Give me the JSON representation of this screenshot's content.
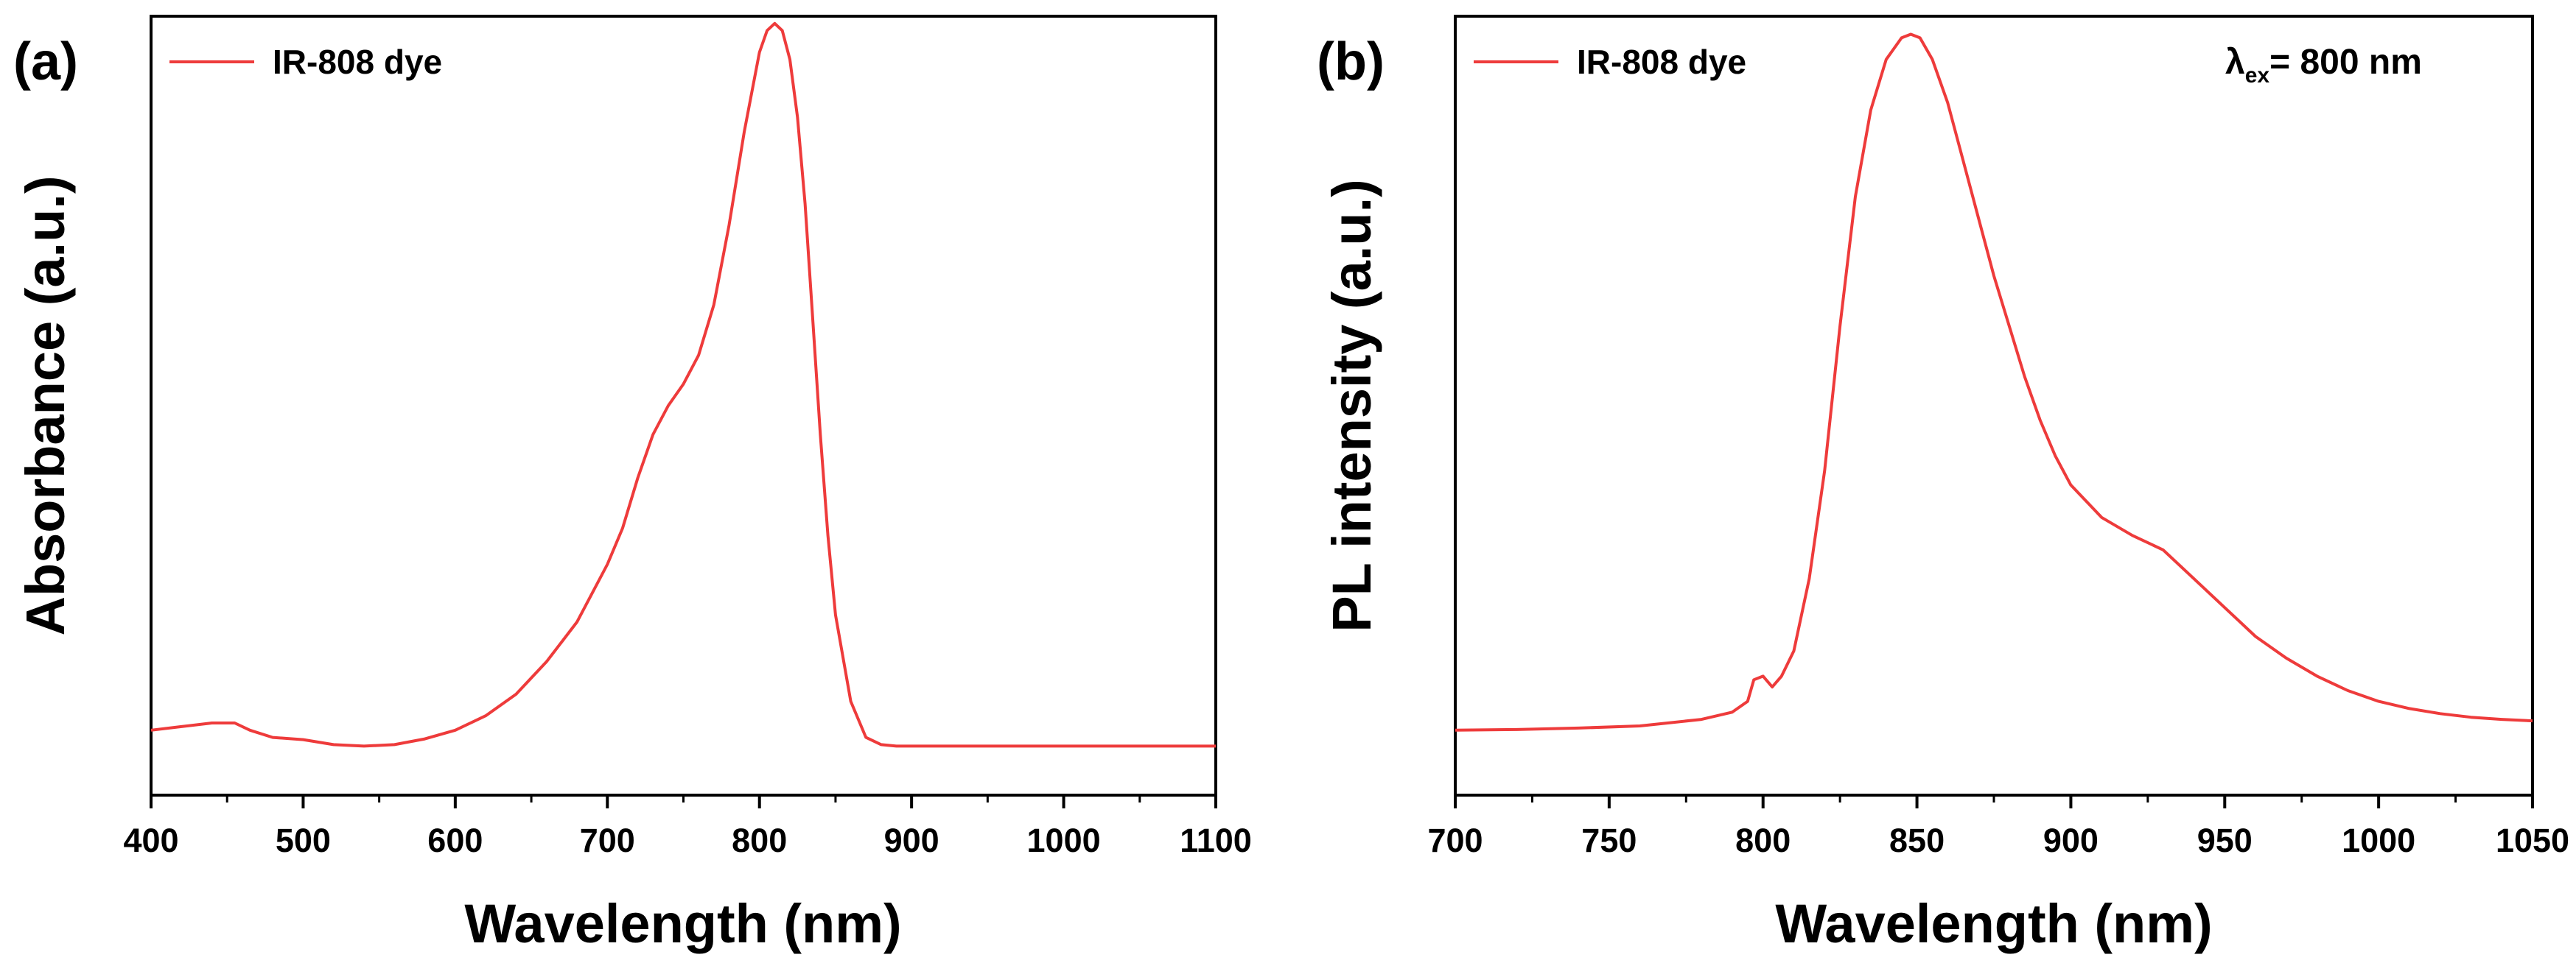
{
  "chart_data": [
    {
      "type": "line",
      "panel_label": "(a)",
      "xlabel": "Wavelength  (nm)",
      "ylabel": "Absorbance  (a.u.)",
      "xlim": [
        400,
        1100
      ],
      "ylim": [
        0,
        1.08
      ],
      "x_ticks": [
        400,
        500,
        600,
        700,
        800,
        900,
        1000,
        1100
      ],
      "y_ticks_shown": false,
      "legend": "top-left",
      "color": "#ee3b3b",
      "series": [
        {
          "name": "IR-808 dye",
          "x": [
            400,
            420,
            440,
            455,
            465,
            480,
            500,
            520,
            540,
            560,
            580,
            600,
            620,
            640,
            660,
            680,
            700,
            710,
            720,
            730,
            740,
            750,
            760,
            770,
            780,
            790,
            800,
            805,
            810,
            815,
            820,
            825,
            830,
            835,
            840,
            845,
            850,
            860,
            870,
            880,
            890,
            900,
            950,
            1000,
            1050,
            1100
          ],
          "y": [
            0.09,
            0.095,
            0.1,
            0.1,
            0.09,
            0.08,
            0.077,
            0.07,
            0.068,
            0.07,
            0.078,
            0.09,
            0.11,
            0.14,
            0.185,
            0.24,
            0.32,
            0.37,
            0.44,
            0.5,
            0.54,
            0.57,
            0.61,
            0.68,
            0.79,
            0.92,
            1.03,
            1.06,
            1.07,
            1.06,
            1.02,
            0.94,
            0.82,
            0.66,
            0.5,
            0.36,
            0.25,
            0.13,
            0.08,
            0.07,
            0.068,
            0.068,
            0.068,
            0.068,
            0.068,
            0.068
          ]
        }
      ]
    },
    {
      "type": "line",
      "panel_label": "(b)",
      "xlabel": "Wavelength  (nm)",
      "ylabel": "PL intensity  (a.u.)",
      "xlim": [
        700,
        1050
      ],
      "ylim": [
        0,
        1.08
      ],
      "x_ticks": [
        700,
        750,
        800,
        850,
        900,
        950,
        1000,
        1050
      ],
      "y_ticks_shown": false,
      "legend": "top-left",
      "annotation": {
        "symbol": "λ",
        "subscript": "ex",
        "text": "= 800 nm"
      },
      "color": "#ee3b3b",
      "series": [
        {
          "name": "IR-808 dye",
          "x": [
            700,
            720,
            740,
            760,
            780,
            790,
            795,
            797,
            800,
            803,
            806,
            810,
            815,
            820,
            825,
            830,
            835,
            840,
            845,
            848,
            851,
            855,
            860,
            865,
            870,
            875,
            880,
            885,
            890,
            895,
            900,
            910,
            920,
            930,
            940,
            950,
            960,
            970,
            980,
            990,
            1000,
            1010,
            1020,
            1030,
            1040,
            1050
          ],
          "y": [
            0.09,
            0.091,
            0.093,
            0.096,
            0.105,
            0.115,
            0.13,
            0.16,
            0.165,
            0.15,
            0.165,
            0.2,
            0.3,
            0.45,
            0.65,
            0.83,
            0.95,
            1.02,
            1.05,
            1.055,
            1.05,
            1.02,
            0.96,
            0.88,
            0.8,
            0.72,
            0.65,
            0.58,
            0.52,
            0.47,
            0.43,
            0.385,
            0.36,
            0.34,
            0.3,
            0.26,
            0.22,
            0.19,
            0.165,
            0.145,
            0.13,
            0.12,
            0.113,
            0.108,
            0.105,
            0.103
          ]
        }
      ]
    }
  ]
}
